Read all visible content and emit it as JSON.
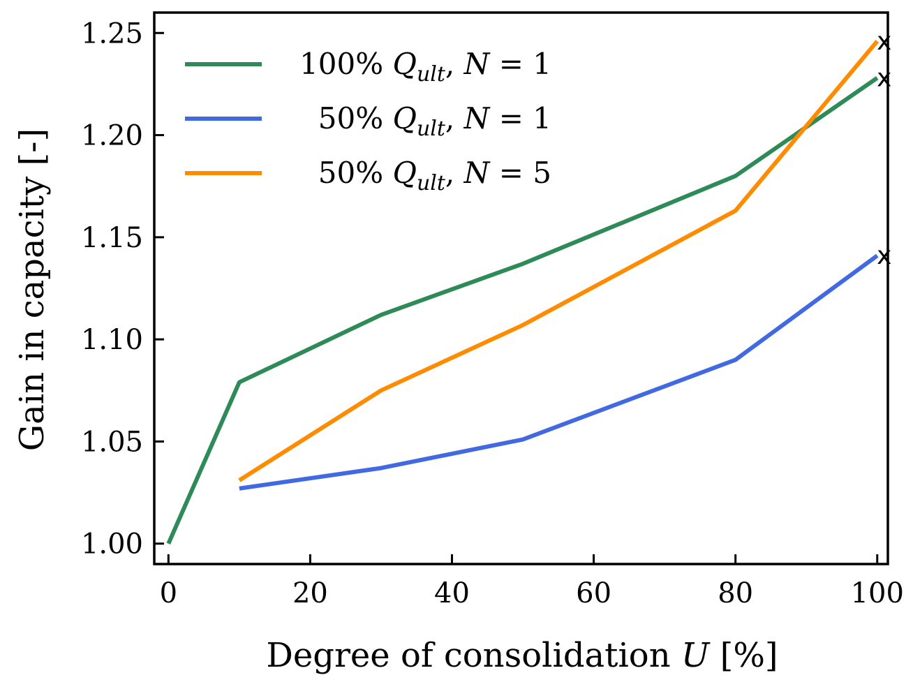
{
  "chart_data": {
    "type": "line",
    "xlabel": "Degree of consolidation U [%]",
    "xlabel_parts": {
      "text": "Degree of consolidation ",
      "var": "U",
      "unit": " [%]"
    },
    "ylabel": "Gain in capacity [-]",
    "xlim": [
      -2,
      101.5
    ],
    "ylim": [
      0.99,
      1.26
    ],
    "xticks": [
      0,
      20,
      40,
      60,
      80,
      100
    ],
    "yticks": [
      1.0,
      1.05,
      1.1,
      1.15,
      1.2,
      1.25
    ],
    "xtick_labels": [
      "0",
      "20",
      "40",
      "60",
      "80",
      "100"
    ],
    "ytick_labels": [
      "1.00",
      "1.05",
      "1.10",
      "1.15",
      "1.20",
      "1.25"
    ],
    "grid": false,
    "legend_position": "top-left",
    "end_marker": "x",
    "series": [
      {
        "name": "100% Q_ult, N=1",
        "legend_parts": {
          "pct": "100% ",
          "q": "Q",
          "sub": "ult",
          "rest": ", ",
          "n": "N",
          "eq": " = 1"
        },
        "color": "#2e8b57",
        "x": [
          0,
          10,
          30,
          50,
          80,
          100
        ],
        "y": [
          1.0,
          1.079,
          1.112,
          1.137,
          1.18,
          1.228
        ]
      },
      {
        "name": "50% Q_ult, N=1",
        "legend_parts": {
          "pct": "50% ",
          "q": "Q",
          "sub": "ult",
          "rest": ", ",
          "n": "N",
          "eq": " = 1"
        },
        "color": "#4169e1",
        "x": [
          10,
          30,
          50,
          80,
          100
        ],
        "y": [
          1.027,
          1.037,
          1.051,
          1.09,
          1.141
        ]
      },
      {
        "name": "50% Q_ult, N=5",
        "legend_parts": {
          "pct": "50% ",
          "q": "Q",
          "sub": "ult",
          "rest": ", ",
          "n": "N",
          "eq": " = 5"
        },
        "color": "#ff8c00",
        "x": [
          10,
          30,
          50,
          80,
          100
        ],
        "y": [
          1.031,
          1.075,
          1.107,
          1.163,
          1.246
        ]
      }
    ]
  }
}
